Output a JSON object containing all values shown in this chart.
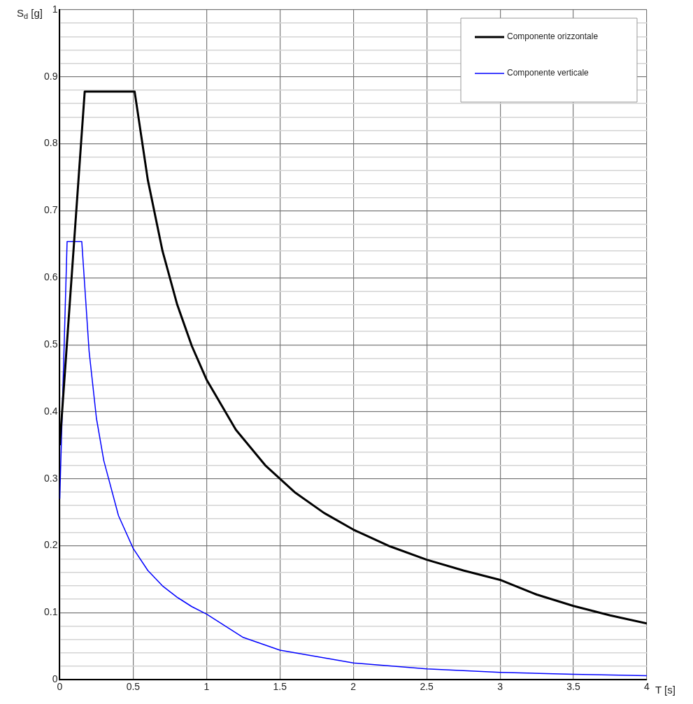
{
  "chart_data": {
    "type": "line",
    "xlabel": "T [s]",
    "ylabel": "S$_{d}$ [g]",
    "xlim": [
      0,
      4
    ],
    "ylim": [
      0,
      1
    ],
    "xticks": [
      0,
      0.5,
      1,
      1.5,
      2,
      2.5,
      3,
      3.5,
      4
    ],
    "yticks": [
      0,
      {
        "value": 0.02,
        "label": null
      },
      {
        "value": 0.04,
        "label": null
      },
      {
        "value": 0.06,
        "label": null
      },
      {
        "value": 0.08,
        "label": null
      },
      0.1,
      {
        "value": 0.12,
        "label": null
      },
      {
        "value": 0.14,
        "label": null
      },
      {
        "value": 0.16,
        "label": null
      },
      {
        "value": 0.18,
        "label": null
      },
      0.2,
      {
        "value": 0.22,
        "label": null
      },
      {
        "value": 0.24,
        "label": null
      },
      {
        "value": 0.26,
        "label": null
      },
      {
        "value": 0.28,
        "label": null
      },
      0.3,
      {
        "value": 0.32,
        "label": null
      },
      {
        "value": 0.34,
        "label": null
      },
      {
        "value": 0.36,
        "label": null
      },
      {
        "value": 0.38,
        "label": null
      },
      0.4,
      {
        "value": 0.42,
        "label": null
      },
      {
        "value": 0.44,
        "label": null
      },
      {
        "value": 0.46,
        "label": null
      },
      {
        "value": 0.48,
        "label": null
      },
      0.5,
      {
        "value": 0.52,
        "label": null
      },
      {
        "value": 0.54,
        "label": null
      },
      {
        "value": 0.56,
        "label": null
      },
      {
        "value": 0.58,
        "label": null
      },
      0.6,
      {
        "value": 0.62,
        "label": null
      },
      {
        "value": 0.64,
        "label": null
      },
      {
        "value": 0.66,
        "label": null
      },
      {
        "value": 0.68,
        "label": null
      },
      0.7,
      {
        "value": 0.72,
        "label": null
      },
      {
        "value": 0.74,
        "label": null
      },
      {
        "value": 0.76,
        "label": null
      },
      {
        "value": 0.78,
        "label": null
      },
      0.8,
      {
        "value": 0.82,
        "label": null
      },
      {
        "value": 0.84,
        "label": null
      },
      {
        "value": 0.86,
        "label": null
      },
      {
        "value": 0.88,
        "label": null
      },
      0.9,
      {
        "value": 0.92,
        "label": null
      },
      {
        "value": 0.94,
        "label": null
      },
      {
        "value": 0.96,
        "label": null
      },
      {
        "value": 0.98,
        "label": null
      },
      1
    ],
    "grid": true,
    "legend": "top right",
    "marker": "none",
    "line_style": "solid",
    "series": [
      {
        "name": "Componente orizzontale",
        "color": "#000000",
        "x": [
          0,
          0.17,
          0.51,
          0.6,
          0.7,
          0.8,
          0.9,
          1,
          1.2,
          1.4,
          1.6,
          1.8,
          2,
          2.25,
          2.5,
          2.75,
          3,
          3.25,
          3.5,
          3.75,
          4
        ],
        "values": [
          0.35,
          0.878,
          0.878,
          0.746,
          0.64,
          0.56,
          0.498,
          0.448,
          0.373,
          0.32,
          0.28,
          0.249,
          0.224,
          0.199,
          0.179,
          0.163,
          0.149,
          0.127,
          0.11,
          0.096,
          0.084
        ]
      },
      {
        "name": "Componente verticale",
        "color": "#0000ff",
        "x": [
          0,
          0.05,
          0.15,
          0.2,
          0.25,
          0.3,
          0.4,
          0.5,
          0.6,
          0.7,
          0.8,
          0.9,
          1,
          1.25,
          1.5,
          2,
          2.5,
          3,
          3.5,
          4
        ],
        "values": [
          0.27,
          0.654,
          0.654,
          0.49,
          0.39,
          0.327,
          0.245,
          0.196,
          0.163,
          0.14,
          0.123,
          0.109,
          0.098,
          0.063,
          0.044,
          0.025,
          0.016,
          0.011,
          0.008,
          0.006
        ]
      }
    ]
  }
}
